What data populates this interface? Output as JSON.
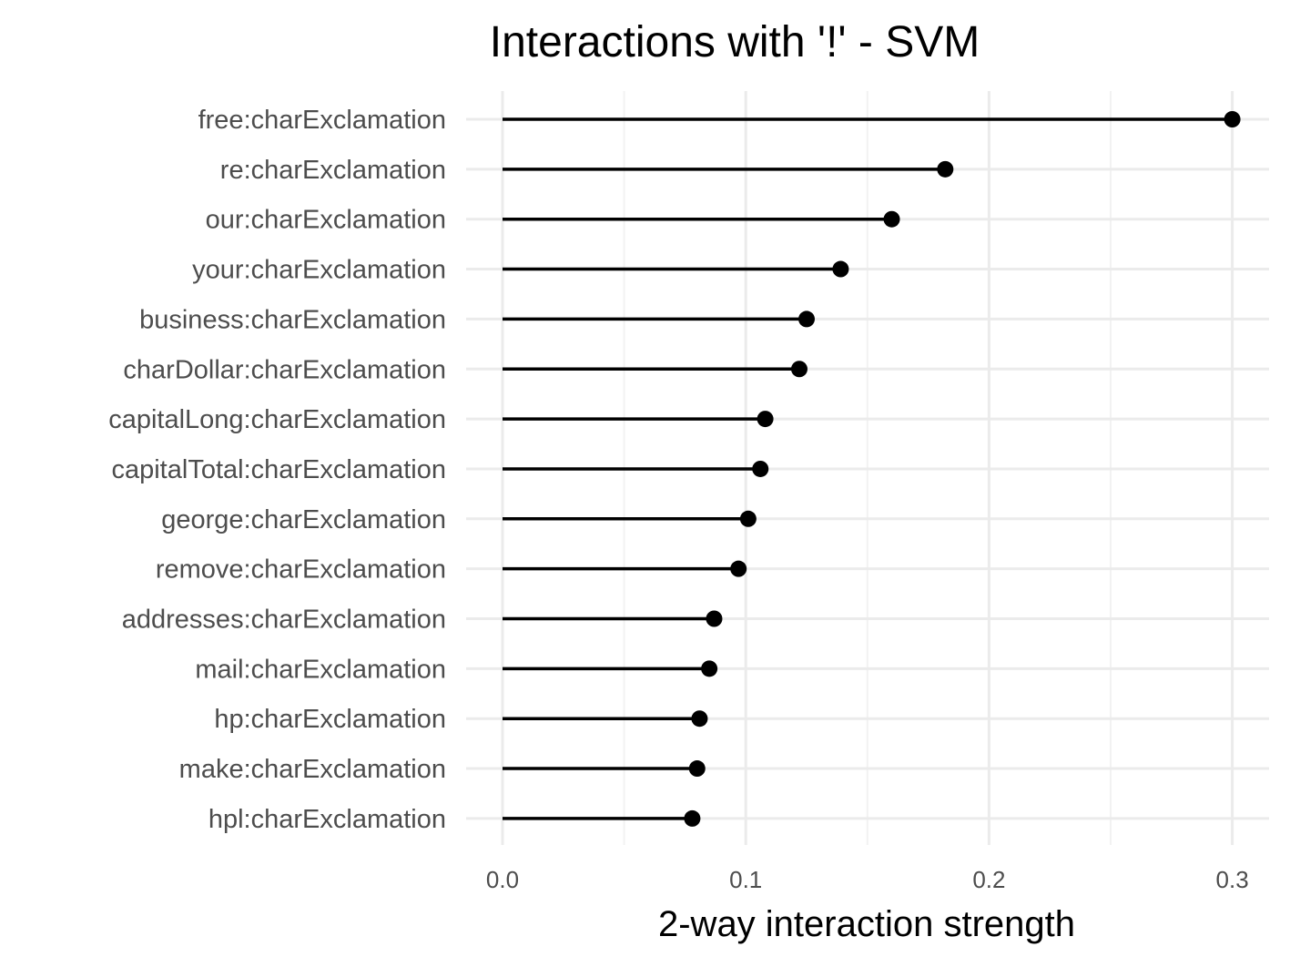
{
  "chart_data": {
    "type": "lollipop",
    "title": "Interactions with '!' - SVM",
    "xlabel": "2-way interaction strength",
    "ylabel": "",
    "xlim": [
      0,
      0.3
    ],
    "x_ticks": [
      "0.0",
      "0.1",
      "0.2",
      "0.3"
    ],
    "x_tick_values": [
      0.0,
      0.1,
      0.2,
      0.3
    ],
    "grid": true,
    "legend": "none",
    "categories": [
      "free:charExclamation",
      "re:charExclamation",
      "our:charExclamation",
      "your:charExclamation",
      "business:charExclamation",
      "charDollar:charExclamation",
      "capitalLong:charExclamation",
      "capitalTotal:charExclamation",
      "george:charExclamation",
      "remove:charExclamation",
      "addresses:charExclamation",
      "mail:charExclamation",
      "hp:charExclamation",
      "make:charExclamation",
      "hpl:charExclamation"
    ],
    "values": [
      0.3,
      0.182,
      0.16,
      0.139,
      0.125,
      0.122,
      0.108,
      0.106,
      0.101,
      0.097,
      0.087,
      0.085,
      0.081,
      0.08,
      0.078
    ],
    "colors": {
      "mark": "#000000",
      "grid": "#ebebeb",
      "tick_text": "#4d4d4d"
    }
  }
}
